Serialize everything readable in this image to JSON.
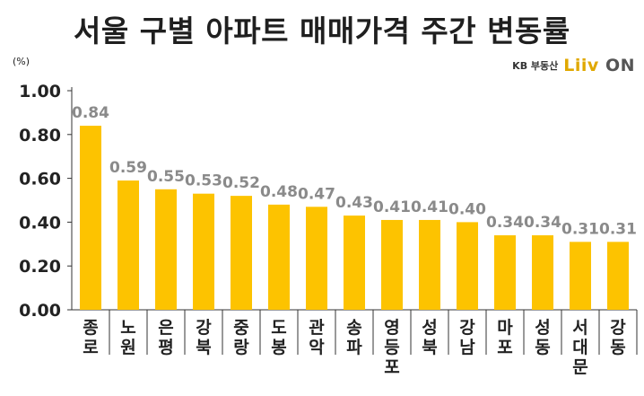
{
  "title": "서울 구별 아파트 매매가격 주간 변동률",
  "unit_label": "(%)",
  "brand": {
    "kb_text": "KB 부동산",
    "logo_text": "Liiv",
    "logo_on": "ON"
  },
  "colors": {
    "bar": "#FDC300",
    "axis": "#333333",
    "value_label": "#8a8a8a"
  },
  "chart_data": {
    "type": "bar",
    "title": "서울 구별 아파트 매매가격 주간 변동률",
    "ylabel": "(%)",
    "xlabel": "",
    "ylim": [
      0,
      1.0
    ],
    "yticks": [
      "0.00",
      "0.20",
      "0.40",
      "0.60",
      "0.80",
      "1.00"
    ],
    "grid": false,
    "categories": [
      "종로",
      "노원",
      "은평",
      "강북",
      "중랑",
      "도봉",
      "관악",
      "송파",
      "영등포",
      "성북",
      "강남",
      "마포",
      "성동",
      "서대문",
      "강동"
    ],
    "values": [
      0.84,
      0.59,
      0.55,
      0.53,
      0.52,
      0.48,
      0.47,
      0.43,
      0.41,
      0.41,
      0.4,
      0.34,
      0.34,
      0.31,
      0.31
    ],
    "value_labels": [
      "0.84",
      "0.59",
      "0.55",
      "0.53",
      "0.52",
      "0.48",
      "0.47",
      "0.43",
      "0.41",
      "0.41",
      "0.40",
      "0.34",
      "0.34",
      "0.31",
      "0.31"
    ]
  }
}
